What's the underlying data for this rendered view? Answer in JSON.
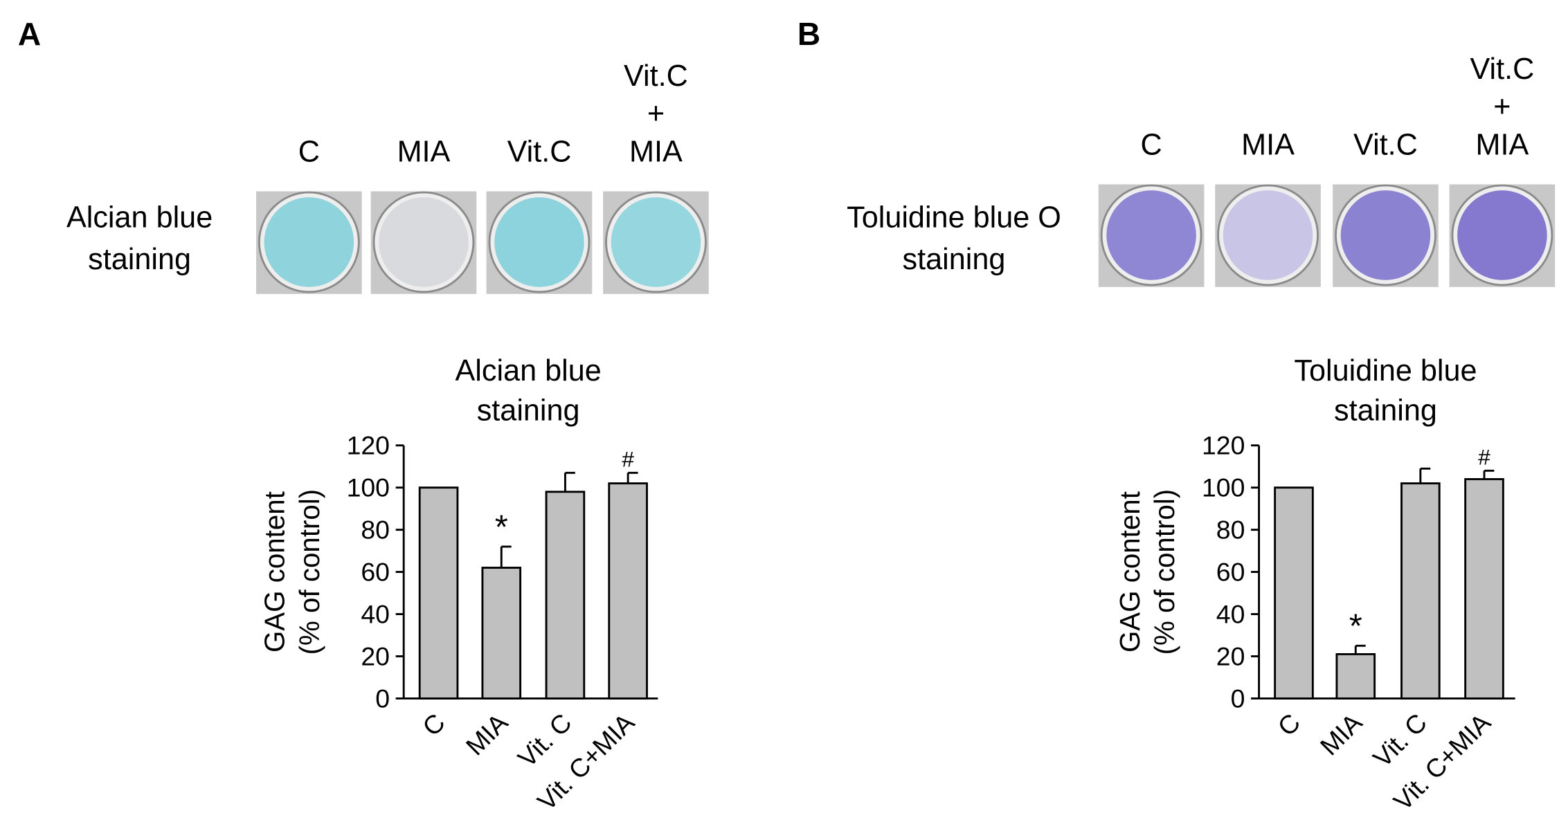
{
  "panels": [
    {
      "label": "A",
      "row_label": [
        "Alcian blue",
        "staining"
      ],
      "well_labels": [
        [
          "C"
        ],
        [
          "MIA"
        ],
        [
          "Vit.C"
        ],
        [
          "Vit.C",
          "+",
          "MIA"
        ]
      ],
      "well_colors": [
        "#8fd3dc",
        "#d9dadd",
        "#8dd3dd",
        "#95d6df"
      ]
    },
    {
      "label": "B",
      "row_label": [
        "Toluidine blue O",
        "staining"
      ],
      "well_labels": [
        [
          "C"
        ],
        [
          "MIA"
        ],
        [
          "Vit.C"
        ],
        [
          "Vit.C",
          "+",
          "MIA"
        ]
      ],
      "well_colors": [
        "#8f86d4",
        "#c9c5e6",
        "#8c82d2",
        "#8479cf"
      ]
    }
  ],
  "chart_data": [
    {
      "type": "bar",
      "title": [
        "Alcian blue",
        "staining"
      ],
      "ylabel": [
        "GAG content",
        "(% of control)"
      ],
      "categories": [
        "C",
        "MIA",
        "Vit. C",
        "Vit. C+MIA"
      ],
      "values": [
        100,
        62,
        98,
        102
      ],
      "errors": [
        0,
        10,
        9,
        5
      ],
      "annotations": [
        null,
        "*",
        null,
        "#"
      ],
      "color": "#c0c0c0",
      "ylim": [
        0,
        120
      ],
      "yticks": [
        0,
        20,
        40,
        60,
        80,
        100,
        120
      ]
    },
    {
      "type": "bar",
      "title": [
        "Toluidine blue",
        "staining"
      ],
      "ylabel": [
        "GAG content",
        "(% of control)"
      ],
      "categories": [
        "C",
        "MIA",
        "Vit. C",
        "Vit. C+MIA"
      ],
      "values": [
        100,
        21,
        102,
        104
      ],
      "errors": [
        0,
        4,
        7,
        4
      ],
      "annotations": [
        null,
        "*",
        null,
        "#"
      ],
      "color": "#c0c0c0",
      "ylim": [
        0,
        120
      ],
      "yticks": [
        0,
        20,
        40,
        60,
        80,
        100,
        120
      ]
    }
  ]
}
